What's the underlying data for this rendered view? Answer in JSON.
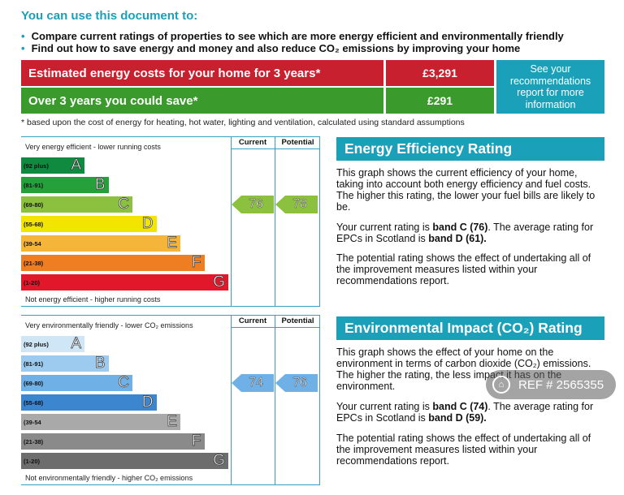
{
  "intro": {
    "title": "You can use this document to:",
    "bullets": [
      "Compare current ratings of properties to see which are more energy efficient and environmentally friendly",
      "Find out how to save energy and money and also reduce CO₂ emissions by improving your home"
    ]
  },
  "costs": {
    "estimated_label": "Estimated energy costs for your home for 3 years*",
    "estimated_value": "£3,291",
    "save_label": "Over 3 years you could save*",
    "save_value": "£291",
    "see_recommendations": "See your recommendations report for more information",
    "footnote": "* based upon the cost of energy for heating, hot water, lighting and ventilation, calculated using standard assumptions"
  },
  "energy_chart": {
    "top_note": "Very energy efficient - lower running costs",
    "bottom_note": "Not energy efficient - higher running costs",
    "col_current": "Current",
    "col_potential": "Potential",
    "bands": [
      {
        "range": "(92 plus)",
        "letter": "A",
        "color": "#0f8a3e"
      },
      {
        "range": "(81-91)",
        "letter": "B",
        "color": "#25a03b"
      },
      {
        "range": "(69-80)",
        "letter": "C",
        "color": "#8cc13f"
      },
      {
        "range": "(55-68)",
        "letter": "D",
        "color": "#f2e600"
      },
      {
        "range": "(39-54",
        "letter": "E",
        "color": "#f5b53a"
      },
      {
        "range": "(21-38)",
        "letter": "F",
        "color": "#ef7d22"
      },
      {
        "range": "(1-20)",
        "letter": "G",
        "color": "#e2182a"
      }
    ],
    "current": "76",
    "potential": "78",
    "arrow_color": "#8cc13f"
  },
  "env_chart": {
    "top_note": "Very environmentally friendly - lower CO₂ emissions",
    "bottom_note": "Not environmentally friendly - higher CO₂ emissions",
    "col_current": "Current",
    "col_potential": "Potential",
    "bands": [
      {
        "range": "(92 plus)",
        "letter": "A",
        "color": "#cfe6f7"
      },
      {
        "range": "(81-91)",
        "letter": "B",
        "color": "#9ccbef"
      },
      {
        "range": "(69-80)",
        "letter": "C",
        "color": "#6fb0e6"
      },
      {
        "range": "(55-68)",
        "letter": "D",
        "color": "#3b86cf"
      },
      {
        "range": "(39-54",
        "letter": "E",
        "color": "#a9a9a9"
      },
      {
        "range": "(21-38)",
        "letter": "F",
        "color": "#8a8a8a"
      },
      {
        "range": "(1-20)",
        "letter": "G",
        "color": "#6d6d6d"
      }
    ],
    "current": "74",
    "potential": "76",
    "arrow_color": "#6fb0e6"
  },
  "energy_text": {
    "heading": "Energy Efficiency Rating",
    "p1": "This graph shows the current efficiency of your home, taking into account both energy efficiency and fuel costs. The higher this rating, the lower your fuel bills are likely to be.",
    "p2_pre": "Your current rating is ",
    "p2_bold1": "band C (76)",
    "p2_mid": ". The average rating for EPCs in Scotland is ",
    "p2_bold2": "band D (61).",
    "p3": "The potential rating shows the effect of undertaking all of the improvement measures listed within your recommendations report."
  },
  "env_text": {
    "heading": "Environmental Impact (CO₂) Rating",
    "p1": "This graph shows the effect of your home on the environment in terms of carbon dioxide (CO₂) emissions. The higher the rating, the less impact it has on the environment.",
    "p2_pre": "Your current rating is ",
    "p2_bold1": "band C (74)",
    "p2_mid": ". The average rating for EPCs in Scotland is ",
    "p2_bold2": "band D (59).",
    "p3": "The potential rating shows the effect of undertaking all of the improvement measures listed within your recommendations report."
  },
  "watermark": {
    "text": "REF # 2565355",
    "icon": "house-icon"
  }
}
